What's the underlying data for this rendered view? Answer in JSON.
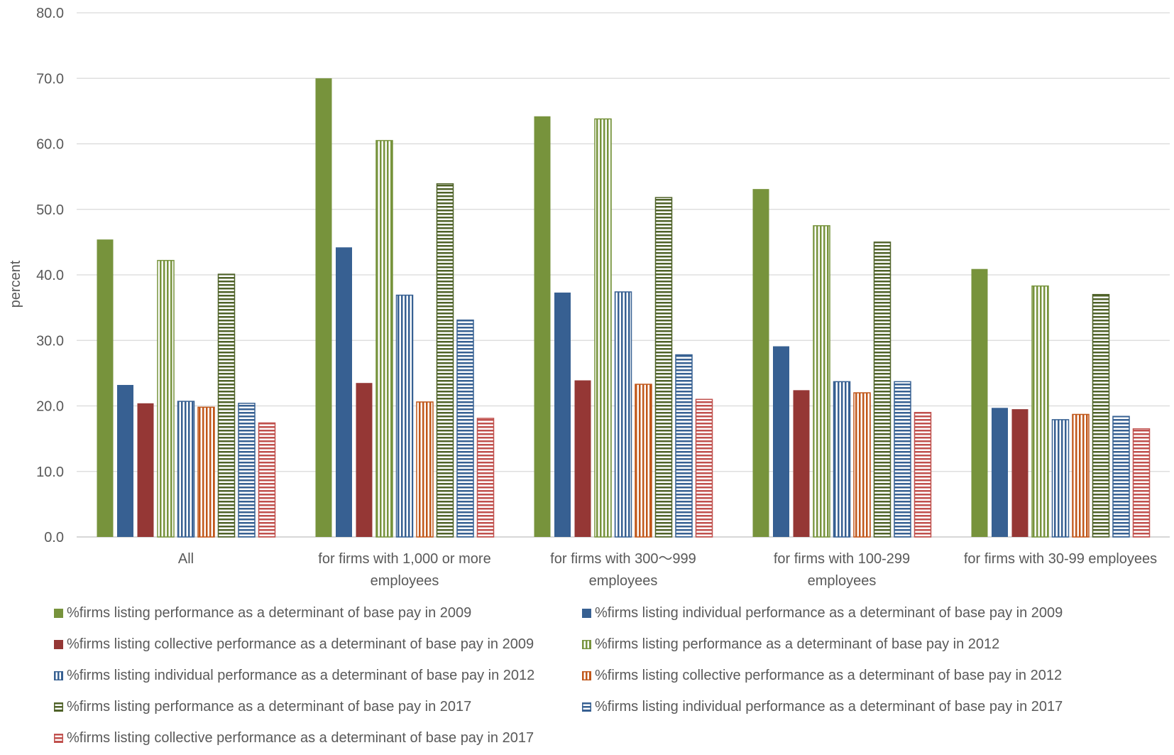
{
  "chart_data": {
    "type": "bar",
    "ylabel": "percent",
    "ylim": [
      0,
      80
    ],
    "yticks": [
      "0.0",
      "10.0",
      "20.0",
      "30.0",
      "40.0",
      "50.0",
      "60.0",
      "70.0",
      "80.0"
    ],
    "grid": true,
    "legend_position": "bottom",
    "categories": [
      [
        "All"
      ],
      [
        "for firms with 1,000 or more",
        "employees"
      ],
      [
        "for firms with 300〜999",
        "employees"
      ],
      [
        "for firms with 100-299",
        "employees"
      ],
      [
        "for firms with 30-99 employees"
      ]
    ],
    "series": [
      {
        "name": "%firms listing performance as a determinant of base pay in 2009",
        "color": "#77933c",
        "pattern": "solid",
        "values": [
          45.4,
          70.0,
          64.2,
          53.1,
          40.9
        ]
      },
      {
        "name": "%firms listing individual performance as a determinant of base pay in 2009",
        "color": "#376092",
        "pattern": "solid",
        "values": [
          23.2,
          44.2,
          37.3,
          29.1,
          19.7
        ]
      },
      {
        "name": "%firms listing collective performance as a determinant of base pay in 2009",
        "color": "#953735",
        "pattern": "solid",
        "values": [
          20.4,
          23.5,
          23.9,
          22.4,
          19.5
        ]
      },
      {
        "name": "%firms listing performance as a determinant of base pay in 2012",
        "color": "#77933c",
        "pattern": "vertical",
        "values": [
          42.2,
          60.5,
          63.8,
          47.5,
          38.3
        ]
      },
      {
        "name": "%firms listing individual performance as a determinant of base pay in 2012",
        "color": "#376092",
        "pattern": "vertical",
        "values": [
          20.7,
          36.9,
          37.4,
          23.7,
          17.9
        ]
      },
      {
        "name": "%firms listing collective performance as a determinant of base pay in 2012",
        "color": "#c0571a",
        "pattern": "vertical",
        "values": [
          19.8,
          20.6,
          23.3,
          22.0,
          18.7
        ]
      },
      {
        "name": "%firms listing performance as a determinant of base pay in 2017",
        "color": "#4f6228",
        "pattern": "horizontal",
        "values": [
          40.1,
          53.9,
          51.8,
          45.0,
          37.0
        ]
      },
      {
        "name": "%firms listing individual performance as a determinant of base pay in 2017",
        "color": "#376092",
        "pattern": "horizontal",
        "values": [
          20.4,
          33.1,
          27.8,
          23.7,
          18.4
        ]
      },
      {
        "name": "%firms listing collective performance as a determinant of base pay in 2017",
        "color": "#c0504d",
        "pattern": "horizontal",
        "values": [
          17.4,
          18.1,
          21.0,
          19.0,
          16.5
        ]
      }
    ]
  }
}
